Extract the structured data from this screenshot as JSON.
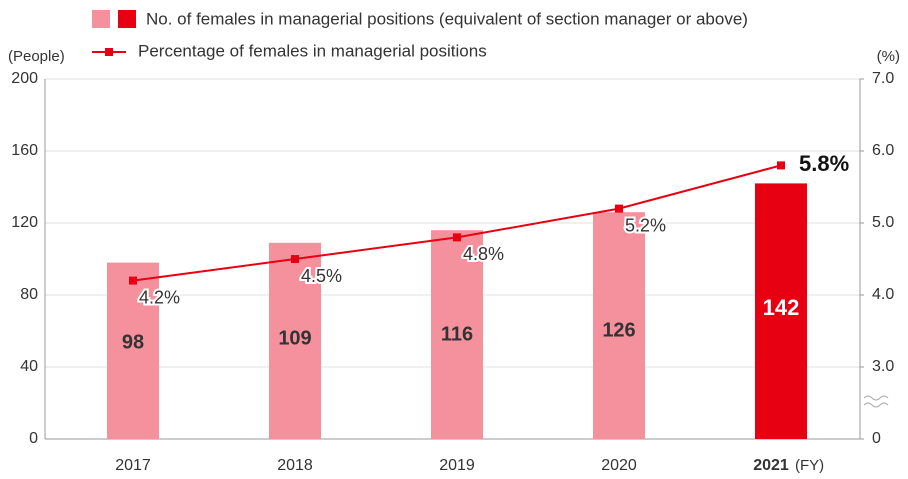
{
  "chart_data": {
    "type": "bar_line",
    "y_label": "(People)",
    "y2_label": "(%)",
    "x_unit": "(FY)",
    "categories": [
      "2017",
      "2018",
      "2019",
      "2020",
      "2021"
    ],
    "series": [
      {
        "name": "No. of females in managerial positions (equivalent of section manager or above)",
        "type": "bar",
        "color": "#f4919d",
        "highlight_color": "#e60012",
        "highlight_index": 4,
        "values": [
          98,
          109,
          116,
          126,
          142
        ]
      },
      {
        "name": "Percentage of females in managerial positions",
        "type": "line",
        "axis": "y2",
        "color": "#e60012",
        "values": [
          4.2,
          4.5,
          4.8,
          5.2,
          5.8
        ],
        "value_labels": [
          "4.2%",
          "4.5%",
          "4.8%",
          "5.2%",
          "5.8%"
        ]
      }
    ],
    "ylim": [
      0,
      200
    ],
    "yticks": [
      0,
      40,
      80,
      120,
      160,
      200
    ],
    "y2lim": [
      0,
      7
    ],
    "y2_break": [
      0,
      3
    ],
    "y2ticks": [
      0,
      {
        "value": 3,
        "label": "3.0"
      },
      {
        "value": 4,
        "label": "4.0"
      },
      {
        "value": 5,
        "label": "5.0"
      },
      {
        "value": 6,
        "label": "6.0"
      },
      {
        "value": 7,
        "label": "7.0"
      }
    ],
    "grid": true
  }
}
